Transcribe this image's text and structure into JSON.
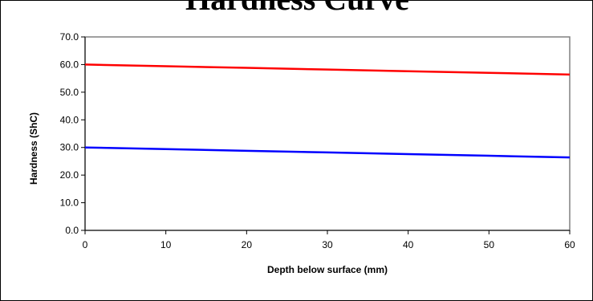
{
  "chart_data": {
    "type": "line",
    "title": "Hardness Curve",
    "xlabel": "Depth below surface (mm)",
    "ylabel": "Hardness (ShC)",
    "xlim": [
      0,
      60
    ],
    "ylim": [
      0,
      70
    ],
    "x_ticks": [
      "0",
      "10",
      "20",
      "30",
      "40",
      "50",
      "60"
    ],
    "y_ticks": [
      "0.0",
      "10.0",
      "20.0",
      "30.0",
      "40.0",
      "50.0",
      "60.0",
      "70.0"
    ],
    "grid": false,
    "legend": "none",
    "series": [
      {
        "color": "#ff0000",
        "x": [
          0,
          10,
          20,
          30,
          40,
          50,
          60
        ],
        "y": [
          60.0,
          59.4,
          58.8,
          58.2,
          57.6,
          57.0,
          56.4
        ]
      },
      {
        "color": "#0000ff",
        "x": [
          0,
          10,
          20,
          30,
          40,
          50,
          60
        ],
        "y": [
          30.0,
          29.4,
          28.8,
          28.2,
          27.6,
          27.0,
          26.4
        ]
      }
    ]
  }
}
